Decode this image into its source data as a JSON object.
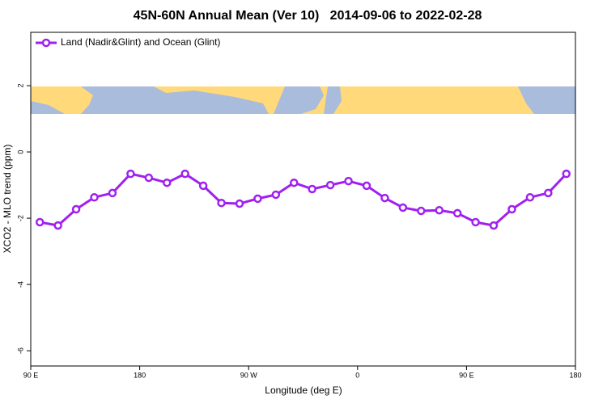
{
  "chart_data": {
    "type": "line",
    "title": "45N-60N Annual Mean (Ver 10)   2014-09-06 to 2022-02-28",
    "xlabel": "Longitude (deg E)",
    "ylabel": "XCO2 - MLO trend (ppm)",
    "xlim": [
      90,
      540
    ],
    "xticks": [
      {
        "value": 90,
        "label": "90 E"
      },
      {
        "value": 180,
        "label": "180"
      },
      {
        "value": 270,
        "label": "90 W"
      },
      {
        "value": 360,
        "label": "0"
      },
      {
        "value": 450,
        "label": "90 E"
      },
      {
        "value": 540,
        "label": "180"
      }
    ],
    "ylim": [
      -6.46,
      3.61
    ],
    "yticks": [
      -6,
      -4,
      -2,
      0,
      2
    ],
    "legend": "top-left",
    "x": [
      97.5,
      112.5,
      127.5,
      142.5,
      157.5,
      172.5,
      187.5,
      202.5,
      217.5,
      232.5,
      247.5,
      262.5,
      277.5,
      292.5,
      307.5,
      322.5,
      337.5,
      352.5,
      367.5,
      382.5,
      397.5,
      412.5,
      427.5,
      442.5,
      457.5,
      472.5,
      487.5,
      502.5,
      517.5,
      532.5
    ],
    "series": [
      {
        "name": "Land (Nadir&Glint) and Ocean (Glint)",
        "color": "#a020f0",
        "values": [
          -2.12,
          -2.22,
          -1.73,
          -1.37,
          -1.24,
          -0.66,
          -0.78,
          -0.93,
          -0.66,
          -1.02,
          -1.54,
          -1.56,
          -1.41,
          -1.29,
          -0.93,
          -1.12,
          -1.0,
          -0.88,
          -1.02,
          -1.39,
          -1.68,
          -1.78,
          -1.76,
          -1.85,
          -2.12,
          -2.22,
          -1.73,
          -1.37,
          -1.24,
          -0.66
        ]
      }
    ]
  }
}
